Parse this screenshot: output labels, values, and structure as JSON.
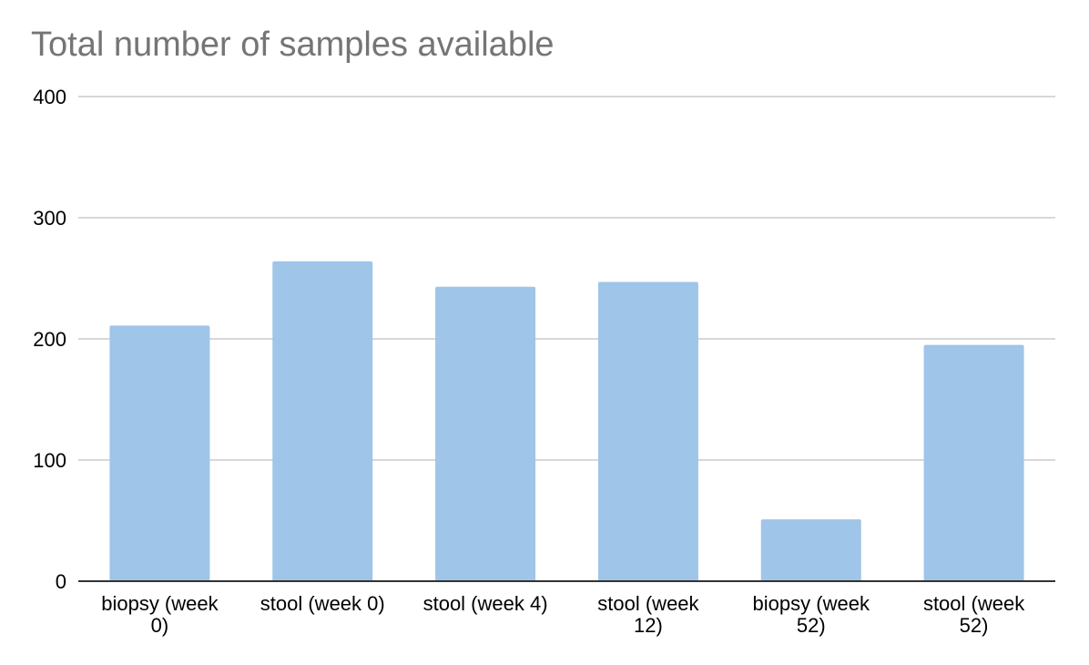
{
  "chart_data": {
    "type": "bar",
    "title": "Total number of samples available",
    "xlabel": "",
    "ylabel": "",
    "ylim": [
      0,
      400
    ],
    "yticks": [
      0,
      100,
      200,
      300,
      400
    ],
    "grid": true,
    "legend": "none",
    "bar_color": "#9fc5e8",
    "categories": [
      "biopsy (week 0)",
      "stool (week 0)",
      "stool (week 4)",
      "stool (week 12)",
      "biopsy (week 52)",
      "stool (week 52)"
    ],
    "category_label_lines": [
      [
        "biopsy (week",
        "0)"
      ],
      [
        "stool (week 0)"
      ],
      [
        "stool (week 4)"
      ],
      [
        "stool (week",
        "12)"
      ],
      [
        "biopsy (week",
        "52)"
      ],
      [
        "stool (week",
        "52)"
      ]
    ],
    "values": [
      211,
      264,
      243,
      247,
      51,
      195
    ]
  }
}
